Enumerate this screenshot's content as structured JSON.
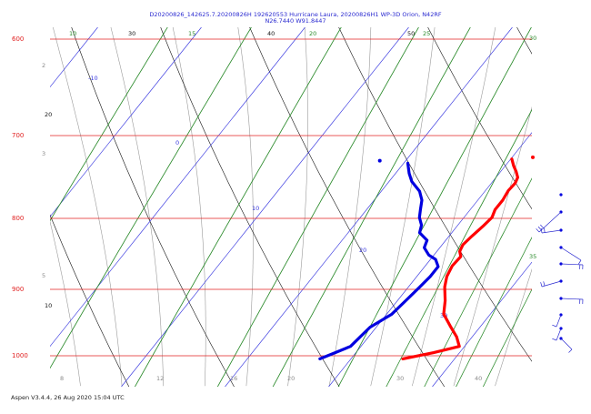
{
  "title_line1": "D20200826_142625.7.20200826H 192620553 Hurricane Laura, 20200826H1 WP-3D Orion, N42RF",
  "title_line2": "N26.7440 W91.8447",
  "footer": "Aspen V3.4.4, 26 Aug 2020  15:04 UTC",
  "colors": {
    "isobar": "#e02020",
    "temperature_profile": "#ff0000",
    "dewpoint_profile": "#0000e0",
    "isotherm": "#3a3ae0",
    "mixing_ratio": "#2a8a2a",
    "dry_adiabat": "#111111",
    "moist_adiabat": "#9a9a9a"
  },
  "chart_data": {
    "type": "skew-t log-p",
    "y_axis": {
      "quantity": "pressure (hPa)",
      "scale": "log",
      "range": [
        1050,
        590
      ],
      "tick_labels": [
        "600",
        "700",
        "800",
        "900",
        "1000"
      ]
    },
    "isotherm_labels": [
      "-10",
      "0",
      "10",
      "20",
      "30"
    ],
    "mixing_ratio_labels": [
      "10",
      "15",
      "20",
      "25",
      "30",
      "35"
    ],
    "dry_adiabat_labels": [
      "30",
      "40",
      "50",
      "20",
      "10"
    ],
    "moist_adiabat_labels": [
      "2",
      "3",
      "5"
    ],
    "bottom_labels": [
      "8",
      "12",
      "16",
      "20",
      "30",
      "40"
    ],
    "series": [
      {
        "kind": "temperature",
        "points": [
          [
            1005,
            25
          ],
          [
            995,
            27.5
          ],
          [
            985,
            29.5
          ],
          [
            970,
            28.5
          ],
          [
            955,
            27.2
          ],
          [
            935,
            25.5
          ],
          [
            915,
            24.6
          ],
          [
            895,
            23.5
          ],
          [
            880,
            22.9
          ],
          [
            865,
            22.6
          ],
          [
            852,
            22.7
          ],
          [
            845,
            22.2
          ],
          [
            836,
            22
          ],
          [
            825,
            22.2
          ],
          [
            812,
            22.5
          ],
          [
            800,
            22.7
          ],
          [
            790,
            22.4
          ],
          [
            778,
            22.4
          ],
          [
            766,
            22.2
          ],
          [
            757,
            22.3
          ],
          [
            750,
            22.1
          ],
          [
            743,
            21.5
          ],
          [
            736,
            20.8
          ],
          [
            728,
            20.1
          ]
        ],
        "isolated_point": [
          726,
          22.0
        ]
      },
      {
        "kind": "dewpoint",
        "points": [
          [
            1005,
            17
          ],
          [
            995,
            18
          ],
          [
            985,
            19
          ],
          [
            970,
            19.2
          ],
          [
            955,
            19.4
          ],
          [
            935,
            20.5
          ],
          [
            915,
            20.8
          ],
          [
            895,
            21.1
          ],
          [
            880,
            21.3
          ],
          [
            866,
            21.3
          ],
          [
            856,
            20.5
          ],
          [
            850,
            19.5
          ],
          [
            840,
            18.5
          ],
          [
            830,
            18.2
          ],
          [
            820,
            16.9
          ],
          [
            810,
            16.5
          ],
          [
            800,
            15.7
          ],
          [
            790,
            15.2
          ],
          [
            778,
            14.6
          ],
          [
            767,
            13.7
          ],
          [
            755,
            12.2
          ],
          [
            745,
            11.3
          ],
          [
            733,
            10.4
          ]
        ],
        "isolated_point": [
          730,
          7.5
        ]
      }
    ],
    "wind_barbs": [
      {
        "direction": "stub-east",
        "speed": 0
      },
      {
        "direction": "sw",
        "speed": 25
      },
      {
        "direction": "west",
        "speed": 15
      },
      {
        "direction": "ne",
        "speed": 10
      },
      {
        "direction": "east",
        "speed": 15
      },
      {
        "direction": "west",
        "speed": 20
      },
      {
        "direction": "east",
        "speed": 15
      },
      {
        "direction": "south",
        "speed": 10
      },
      {
        "direction": "south",
        "speed": 10
      },
      {
        "direction": "se",
        "speed": 10
      }
    ]
  }
}
